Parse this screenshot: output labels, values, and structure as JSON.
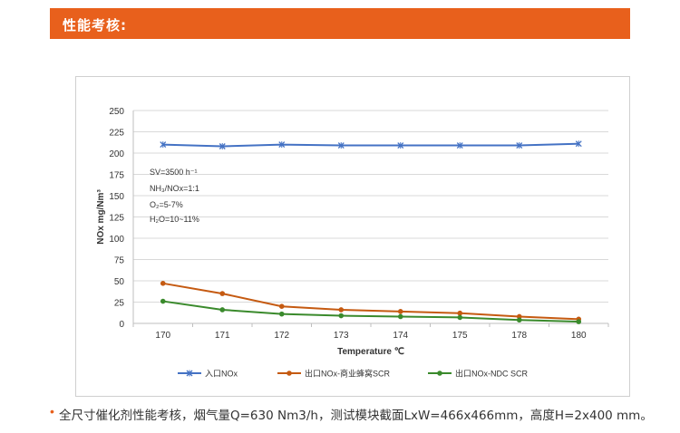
{
  "header": {
    "title": "性能考核:"
  },
  "note": {
    "bullet": "•",
    "text": "全尺寸催化剂性能考核，烟气量Q=630 Nm3/h，测试模块截面LxW=466x466mm，高度H=2x400 mm。"
  },
  "colors": {
    "accent": "#e8601c",
    "inlet": "#4472c4",
    "honeycomb": "#c55a11",
    "ndc": "#3a8a2c",
    "grid": "#d9d9d9"
  },
  "chart_data": {
    "type": "line",
    "categories": [
      "170",
      "171",
      "172",
      "173",
      "174",
      "175",
      "178",
      "180"
    ],
    "series": [
      {
        "name": "入口NOx",
        "marker": "x",
        "values": [
          210,
          208,
          210,
          209,
          209,
          209,
          209,
          211
        ]
      },
      {
        "name": "出口NOx-商业蜂窝SCR",
        "marker": "circle",
        "values": [
          47,
          35,
          20,
          16,
          14,
          12,
          8,
          5
        ]
      },
      {
        "name": "出口NOx-NDC SCR",
        "marker": "circle",
        "values": [
          26,
          16,
          11,
          9,
          8,
          7,
          4,
          2
        ]
      }
    ],
    "xlabel": "Temperature  ℃",
    "ylabel": "NOx mg/Nm³",
    "ylim": [
      0,
      250
    ],
    "yticks": [
      0,
      25,
      50,
      75,
      100,
      125,
      150,
      175,
      200,
      225,
      250
    ],
    "grid": true,
    "legend": "bottom",
    "annotations": [
      "SV=3500 h⁻¹",
      "NH₃/NOx=1:1",
      "O₂=5-7%",
      "H₂O=10~11%"
    ]
  }
}
